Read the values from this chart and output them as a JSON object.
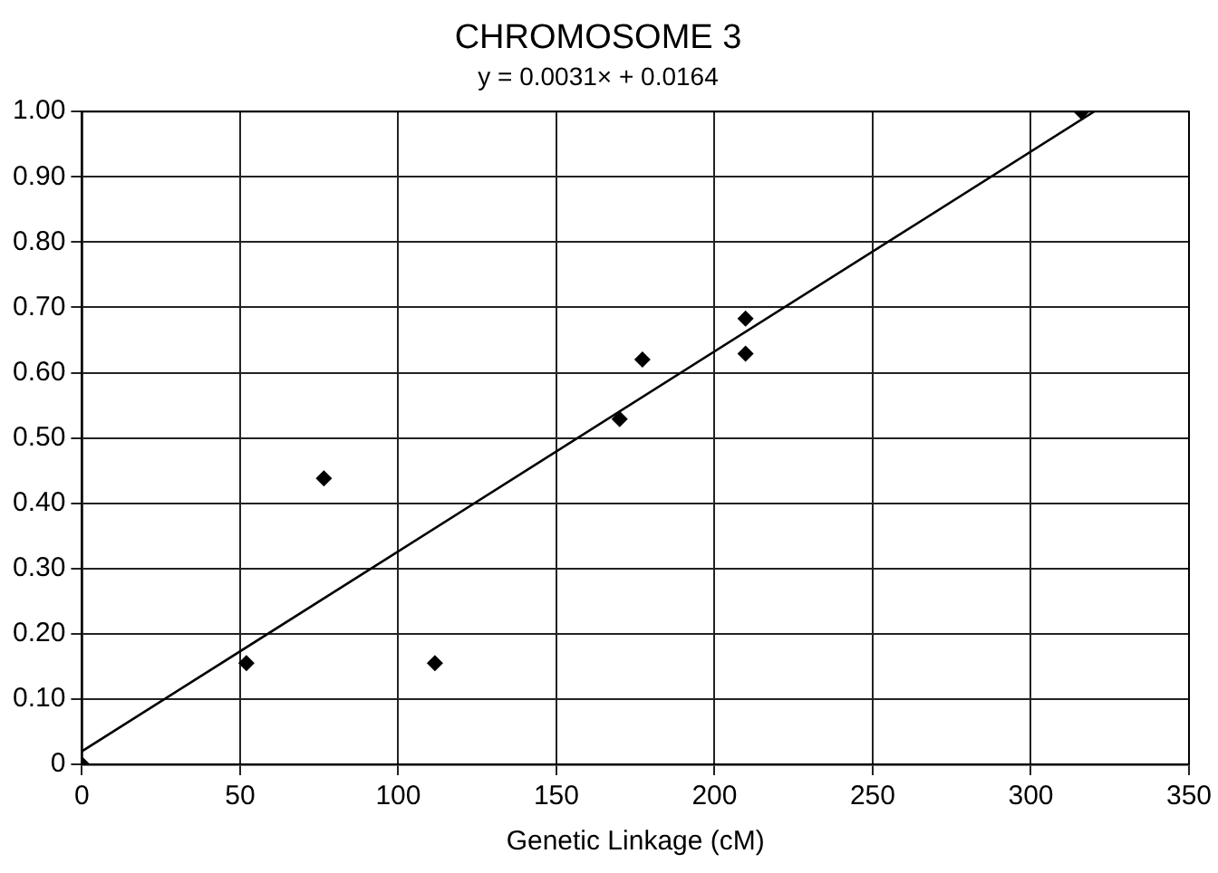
{
  "chart_data": {
    "type": "scatter",
    "title": "CHROMOSOME 3",
    "subtitle": "y = 0.0031× + 0.0164",
    "xlabel": "Genetic Linkage (cM)",
    "series": [
      {
        "type": "scatter",
        "color": "#000000",
        "x": [
          0,
          52,
          76.5,
          111.6,
          170,
          177.2,
          209.8,
          209.8,
          316
        ],
        "values": [
          0,
          0.155,
          0.438,
          0.155,
          0.529,
          0.62,
          0.683,
          0.629,
          1.0
        ],
        "marker": "diamond"
      },
      {
        "type": "line",
        "color": "#000000",
        "x": [
          0,
          320
        ],
        "values": [
          0.02,
          1.0
        ],
        "marker": "none"
      }
    ],
    "xlim": [
      0,
      350
    ],
    "xticks": [
      0,
      50,
      100,
      150,
      200,
      250,
      300,
      350
    ],
    "ylim": [
      0,
      1
    ],
    "yticks": [
      0,
      {
        "value": 0.1,
        "label": "0.10"
      },
      {
        "value": 0.2,
        "label": "0.20"
      },
      {
        "value": 0.3,
        "label": "0.30"
      },
      {
        "value": 0.4,
        "label": "0.40"
      },
      {
        "value": 0.5,
        "label": "0.50"
      },
      {
        "value": 0.6,
        "label": "0.60"
      },
      {
        "value": 0.7,
        "label": "0.70"
      },
      {
        "value": 0.8,
        "label": "0.80"
      },
      {
        "value": 0.9,
        "label": "0.90"
      },
      {
        "value": 1,
        "label": "1.00"
      }
    ],
    "grid": true,
    "legend": false
  }
}
